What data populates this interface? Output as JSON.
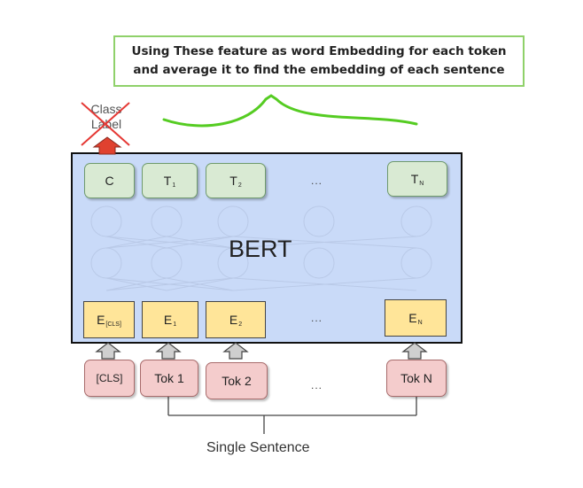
{
  "note": {
    "line1": "Using These feature as word Embedding for each token",
    "line2": "and average it to find the embedding of each sentence"
  },
  "class_label": {
    "line1": "Class",
    "line2": "Label"
  },
  "bert_label": "BERT",
  "outputs": [
    {
      "main": "C",
      "sub": ""
    },
    {
      "main": "T",
      "sub": "1"
    },
    {
      "main": "T",
      "sub": "2"
    },
    {
      "main": "T",
      "sub": "N"
    }
  ],
  "embeddings": [
    {
      "main": "E",
      "sub": "[CLS]"
    },
    {
      "main": "E",
      "sub": "1"
    },
    {
      "main": "E",
      "sub": "2"
    },
    {
      "main": "E",
      "sub": "N"
    }
  ],
  "tokens": [
    "[CLS]",
    "Tok 1",
    "Tok 2",
    "Tok N"
  ],
  "ellipsis": "...",
  "sentence_label": "Single Sentence",
  "colors": {
    "note_border": "#8fd16a",
    "brace": "#55cc22",
    "cross": "#e53935",
    "arrow_red": "#e0412f",
    "bert_fill": "#c9daf8",
    "output_fill": "#d9ead3",
    "embedding_fill": "#ffe599",
    "token_fill": "#f4cccc"
  }
}
